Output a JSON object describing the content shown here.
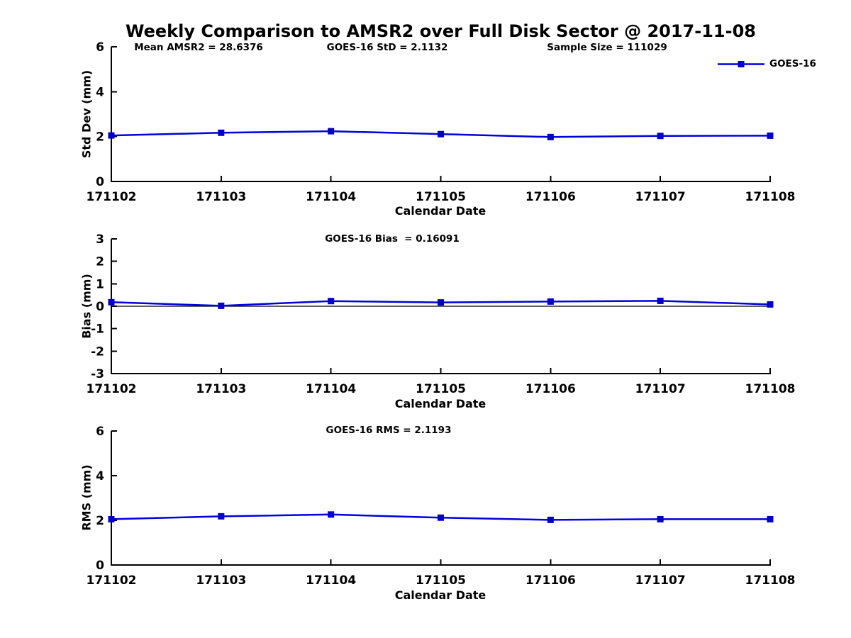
{
  "title": "Weekly Comparison to AMSR2 over Full Disk Sector @ 2017-11-08",
  "legend": {
    "label": "GOES-16"
  },
  "colors": {
    "line": "#0000e0",
    "marker": "#0000c8",
    "axis": "#000000",
    "text": "#000000",
    "background": "#ffffff"
  },
  "chart_data": [
    {
      "type": "line",
      "ylabel": "Std Dev (mm)",
      "xlabel": "Calendar Date",
      "annotations": [
        {
          "text": "Mean AMSR2 = 28.6376"
        },
        {
          "text": "GOES-16 StD = 2.1132"
        },
        {
          "text": "Sample Size = 111029"
        }
      ],
      "categories": [
        "171102",
        "171103",
        "171104",
        "171105",
        "171106",
        "171107",
        "171108"
      ],
      "series": [
        {
          "name": "GOES-16",
          "values": [
            2.05,
            2.17,
            2.24,
            2.11,
            1.98,
            2.03,
            2.04
          ]
        }
      ],
      "ylim": [
        0,
        6
      ],
      "yticks": [
        0,
        2,
        4,
        6
      ],
      "grid": false,
      "zero_line": false,
      "legend_position": "top-right"
    },
    {
      "type": "line",
      "ylabel": "Bias (mm)",
      "xlabel": "Calendar Date",
      "annotations": [
        {
          "text": "GOES-16 Bias  = 0.16091"
        }
      ],
      "categories": [
        "171102",
        "171103",
        "171104",
        "171105",
        "171106",
        "171107",
        "171108"
      ],
      "series": [
        {
          "name": "GOES-16",
          "values": [
            0.18,
            0.02,
            0.23,
            0.17,
            0.21,
            0.24,
            0.08
          ]
        }
      ],
      "ylim": [
        -3,
        3
      ],
      "yticks": [
        -3,
        -2,
        -1,
        0,
        1,
        2,
        3
      ],
      "grid": false,
      "zero_line": true,
      "legend_position": "none"
    },
    {
      "type": "line",
      "ylabel": "RMS (mm)",
      "xlabel": "Calendar Date",
      "annotations": [
        {
          "text": "GOES-16 RMS = 2.1193"
        }
      ],
      "categories": [
        "171102",
        "171103",
        "171104",
        "171105",
        "171106",
        "171107",
        "171108"
      ],
      "series": [
        {
          "name": "GOES-16",
          "values": [
            2.05,
            2.18,
            2.26,
            2.12,
            2.02,
            2.05,
            2.05
          ]
        }
      ],
      "ylim": [
        0,
        6
      ],
      "yticks": [
        0,
        2,
        4,
        6
      ],
      "grid": false,
      "zero_line": false,
      "legend_position": "none"
    }
  ]
}
